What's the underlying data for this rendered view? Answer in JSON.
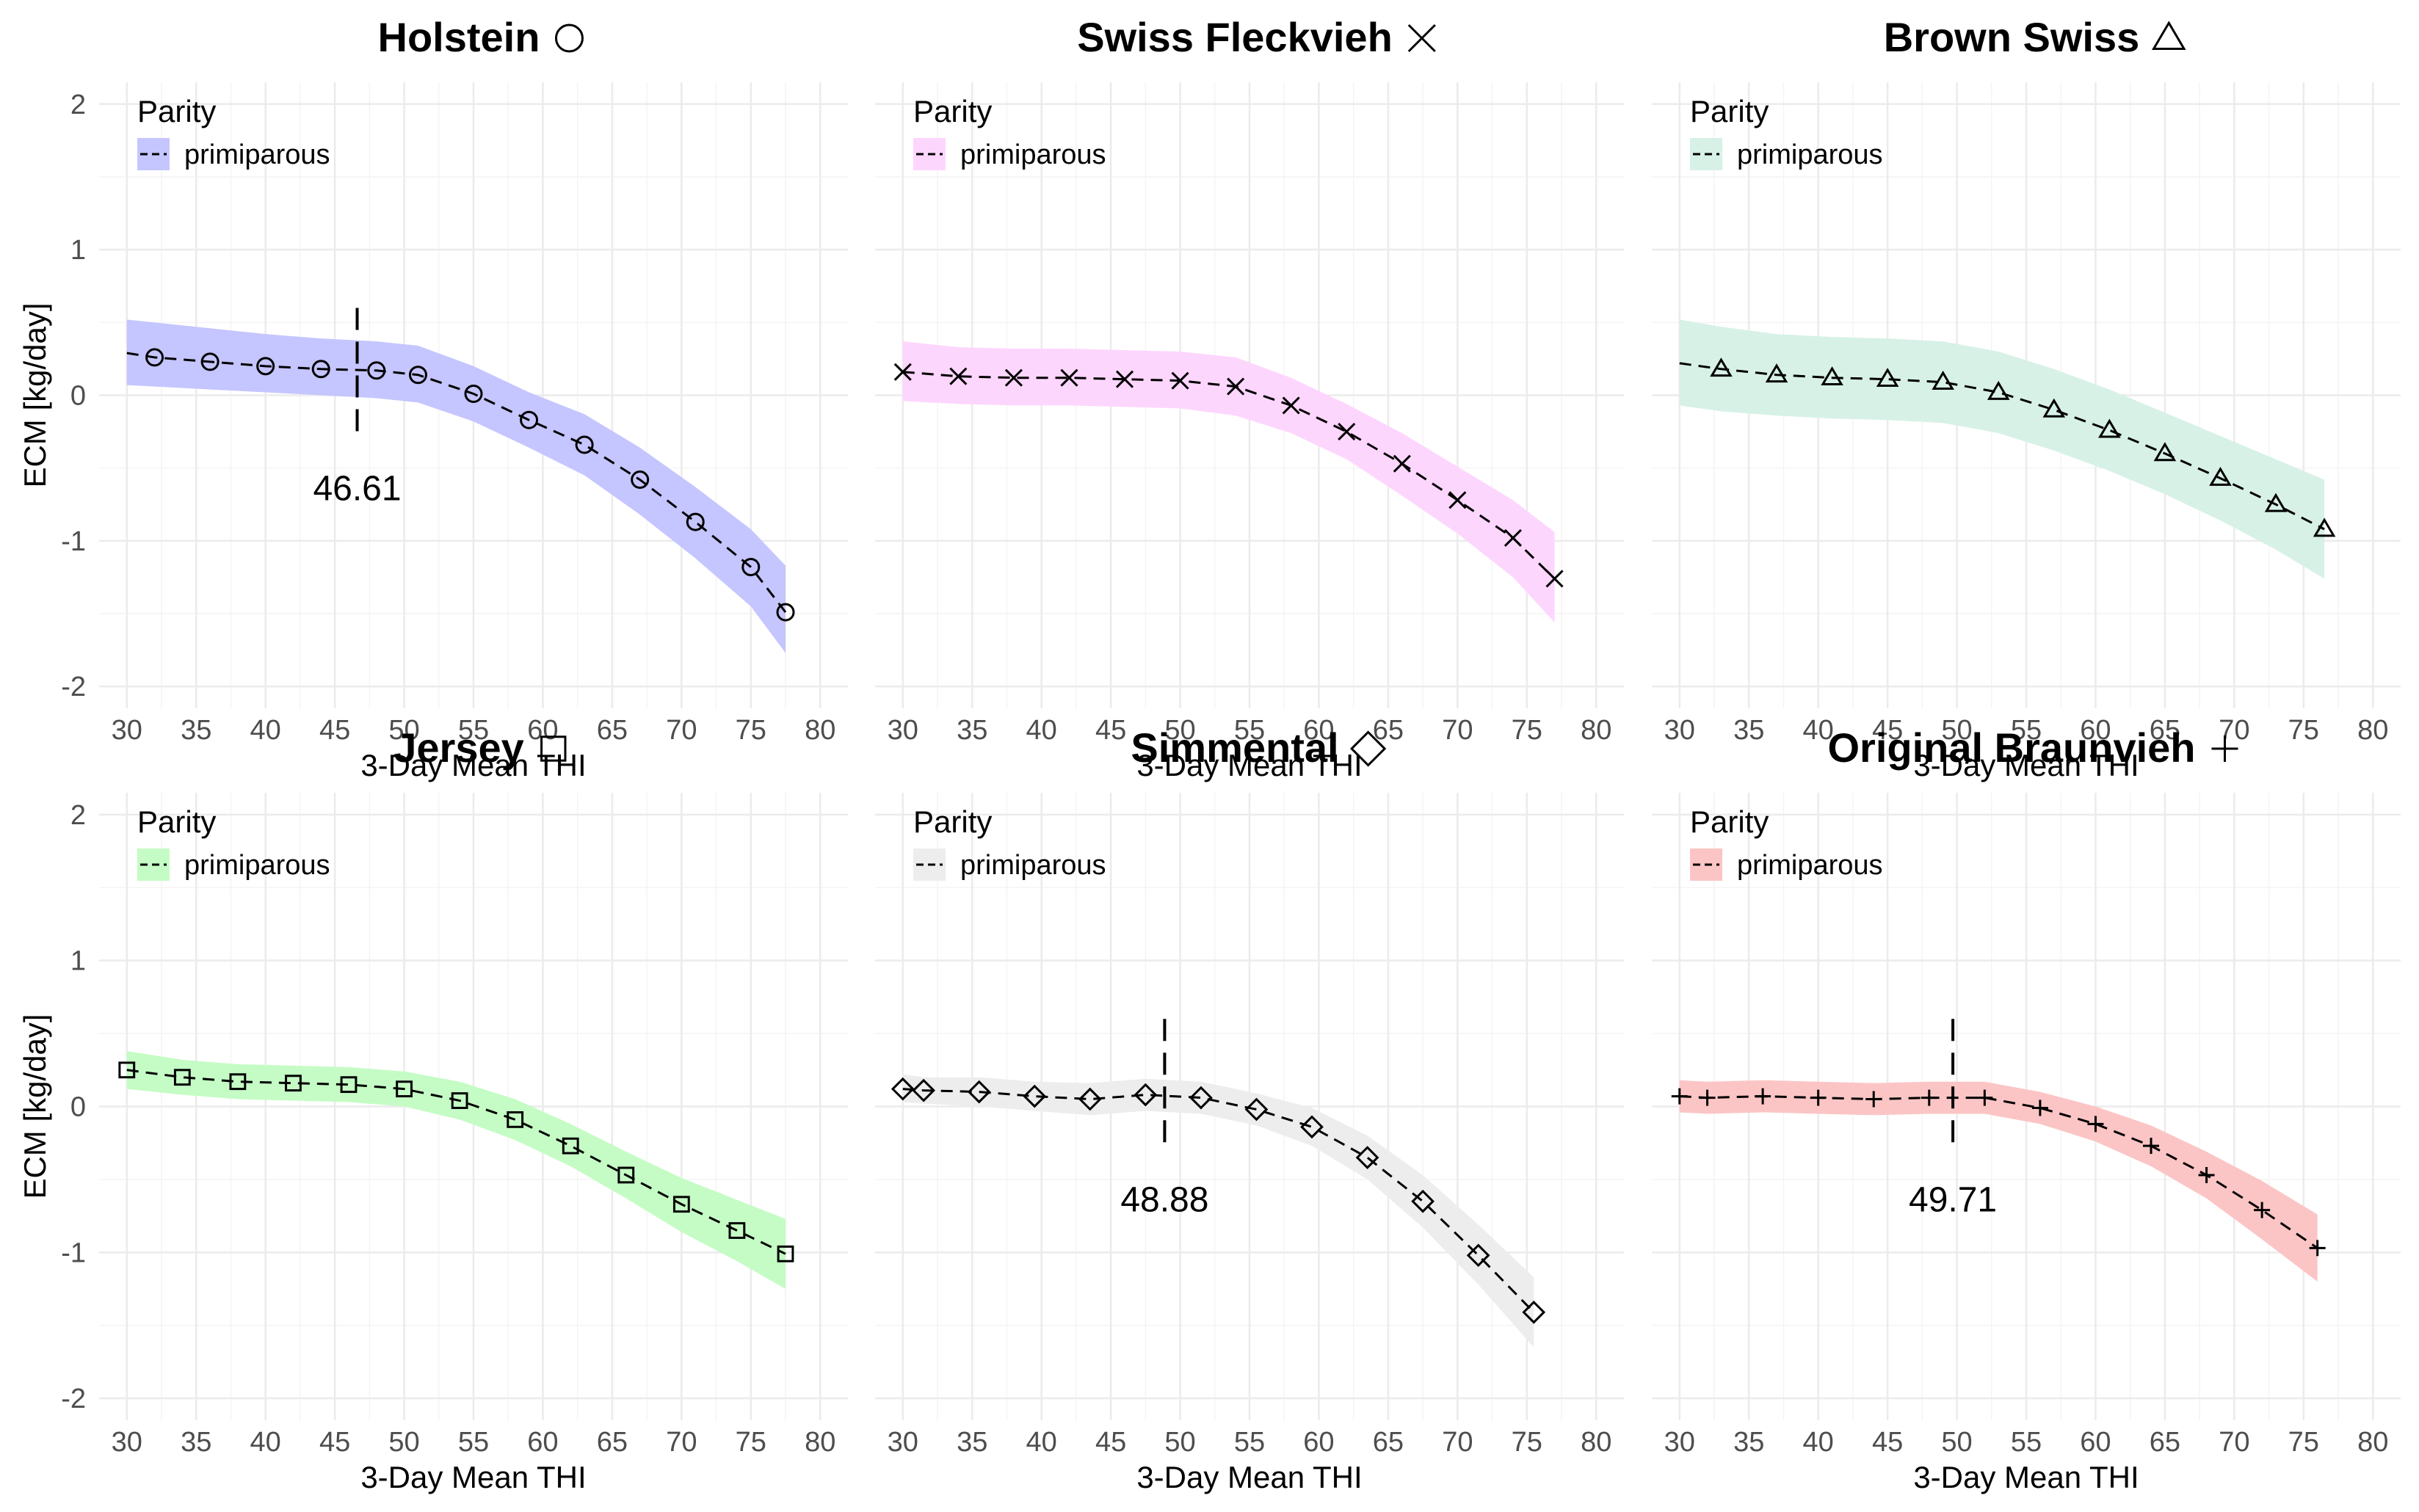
{
  "figure": {
    "x_axis_title": "3-Day Mean THI",
    "y_axis_title": "ECM [kg/day]",
    "legend_title": "Parity",
    "legend_label": "primiparous"
  },
  "chart_data": [
    {
      "type": "line",
      "title": "Holstein",
      "title_symbol": "circle",
      "xlabel": "3-Day Mean THI",
      "ylabel": "ECM [kg/day]",
      "xlim": [
        28,
        82
      ],
      "ylim": [
        -2.15,
        2.15
      ],
      "x_ticks": [
        30,
        35,
        40,
        45,
        50,
        55,
        60,
        65,
        70,
        75,
        80
      ],
      "y_ticks": [
        -2,
        -1,
        0,
        1,
        2
      ],
      "grid": true,
      "legend_position": "top-left",
      "ribbon_color": "#c5c5ff",
      "series": [
        {
          "name": "primiparous",
          "marker": "circle",
          "line_style": "dashed",
          "x": [
            30,
            32,
            36,
            40,
            44,
            48,
            51,
            55,
            59,
            63,
            67,
            71,
            75,
            77.5
          ],
          "y": [
            0.29,
            0.26,
            0.23,
            0.2,
            0.18,
            0.17,
            0.14,
            0.01,
            -0.17,
            -0.34,
            -0.58,
            -0.87,
            -1.18,
            -1.49
          ],
          "lower": [
            0.07,
            0.06,
            0.04,
            0.02,
            0.0,
            -0.02,
            -0.05,
            -0.18,
            -0.36,
            -0.55,
            -0.82,
            -1.12,
            -1.45,
            -1.77
          ],
          "upper": [
            0.52,
            0.5,
            0.46,
            0.42,
            0.39,
            0.37,
            0.34,
            0.2,
            0.02,
            -0.13,
            -0.36,
            -0.63,
            -0.92,
            -1.17
          ]
        }
      ],
      "annotations": [
        {
          "type": "vline",
          "x": 46.61,
          "label": "46.61"
        }
      ]
    },
    {
      "type": "line",
      "title": "Swiss Fleckvieh",
      "title_symbol": "cross",
      "xlabel": "3-Day Mean THI",
      "ylabel": "ECM [kg/day]",
      "xlim": [
        28,
        82
      ],
      "ylim": [
        -2.15,
        2.15
      ],
      "x_ticks": [
        30,
        35,
        40,
        45,
        50,
        55,
        60,
        65,
        70,
        75,
        80
      ],
      "y_ticks": [
        -2,
        -1,
        0,
        1,
        2
      ],
      "grid": true,
      "legend_position": "top-left",
      "ribbon_color": "#fdd6fd",
      "series": [
        {
          "name": "primiparous",
          "marker": "cross",
          "line_style": "dashed",
          "x": [
            30,
            34,
            38,
            42,
            46,
            50,
            54,
            58,
            62,
            66,
            70,
            74,
            77
          ],
          "y": [
            0.16,
            0.13,
            0.12,
            0.12,
            0.11,
            0.1,
            0.06,
            -0.07,
            -0.25,
            -0.47,
            -0.72,
            -0.98,
            -1.26
          ],
          "lower": [
            -0.04,
            -0.06,
            -0.07,
            -0.07,
            -0.08,
            -0.09,
            -0.14,
            -0.26,
            -0.44,
            -0.69,
            -0.95,
            -1.25,
            -1.56
          ],
          "upper": [
            0.37,
            0.33,
            0.32,
            0.32,
            0.31,
            0.3,
            0.26,
            0.12,
            -0.06,
            -0.26,
            -0.49,
            -0.72,
            -0.94
          ]
        }
      ]
    },
    {
      "type": "line",
      "title": "Brown Swiss",
      "title_symbol": "triangle",
      "xlabel": "3-Day Mean THI",
      "ylabel": "ECM [kg/day]",
      "xlim": [
        28,
        82
      ],
      "ylim": [
        -2.15,
        2.15
      ],
      "x_ticks": [
        30,
        35,
        40,
        45,
        50,
        55,
        60,
        65,
        70,
        75,
        80
      ],
      "y_ticks": [
        -2,
        -1,
        0,
        1,
        2
      ],
      "grid": true,
      "legend_position": "top-left",
      "ribbon_color": "#d7f1e7",
      "series": [
        {
          "name": "primiparous",
          "marker": "triangle",
          "line_style": "dashed",
          "x": [
            30,
            33,
            37,
            41,
            45,
            49,
            53,
            57,
            61,
            65,
            69,
            73,
            76.5
          ],
          "y": [
            0.22,
            0.18,
            0.14,
            0.12,
            0.11,
            0.09,
            0.02,
            -0.1,
            -0.24,
            -0.4,
            -0.57,
            -0.75,
            -0.92
          ],
          "lower": [
            -0.07,
            -0.11,
            -0.14,
            -0.16,
            -0.17,
            -0.19,
            -0.26,
            -0.38,
            -0.52,
            -0.68,
            -0.86,
            -1.06,
            -1.26
          ],
          "upper": [
            0.52,
            0.47,
            0.42,
            0.4,
            0.39,
            0.37,
            0.3,
            0.18,
            0.04,
            -0.12,
            -0.28,
            -0.44,
            -0.58
          ]
        }
      ]
    },
    {
      "type": "line",
      "title": "Jersey",
      "title_symbol": "square",
      "xlabel": "3-Day Mean THI",
      "ylabel": "ECM [kg/day]",
      "xlim": [
        28,
        82
      ],
      "ylim": [
        -2.15,
        2.15
      ],
      "x_ticks": [
        30,
        35,
        40,
        45,
        50,
        55,
        60,
        65,
        70,
        75,
        80
      ],
      "y_ticks": [
        -2,
        -1,
        0,
        1,
        2
      ],
      "grid": true,
      "legend_position": "top-left",
      "ribbon_color": "#c5fcc5",
      "series": [
        {
          "name": "primiparous",
          "marker": "square",
          "line_style": "dashed",
          "x": [
            30,
            34,
            38,
            42,
            46,
            50,
            54,
            58,
            62,
            66,
            70,
            74,
            77.5
          ],
          "y": [
            0.25,
            0.2,
            0.17,
            0.16,
            0.15,
            0.12,
            0.04,
            -0.09,
            -0.27,
            -0.47,
            -0.67,
            -0.85,
            -1.01
          ],
          "lower": [
            0.12,
            0.08,
            0.05,
            0.04,
            0.03,
            0.0,
            -0.09,
            -0.23,
            -0.41,
            -0.63,
            -0.86,
            -1.06,
            -1.25
          ],
          "upper": [
            0.38,
            0.32,
            0.29,
            0.28,
            0.27,
            0.24,
            0.17,
            0.05,
            -0.12,
            -0.31,
            -0.49,
            -0.64,
            -0.77
          ]
        }
      ]
    },
    {
      "type": "line",
      "title": "Simmental",
      "title_symbol": "diamond",
      "xlabel": "3-Day Mean THI",
      "ylabel": "ECM [kg/day]",
      "xlim": [
        28,
        82
      ],
      "ylim": [
        -2.15,
        2.15
      ],
      "x_ticks": [
        30,
        35,
        40,
        45,
        50,
        55,
        60,
        65,
        70,
        75,
        80
      ],
      "y_ticks": [
        -2,
        -1,
        0,
        1,
        2
      ],
      "grid": true,
      "legend_position": "top-left",
      "ribbon_color": "#ededed",
      "series": [
        {
          "name": "primiparous",
          "marker": "diamond",
          "line_style": "dashed",
          "x": [
            30,
            31.5,
            35.5,
            39.5,
            43.5,
            47.5,
            51.5,
            55.5,
            59.5,
            63.5,
            67.5,
            71.5,
            75.5
          ],
          "y": [
            0.12,
            0.11,
            0.1,
            0.07,
            0.05,
            0.08,
            0.06,
            -0.02,
            -0.14,
            -0.35,
            -0.65,
            -1.02,
            -1.41
          ],
          "lower": [
            0.03,
            0.02,
            0.0,
            -0.03,
            -0.06,
            -0.03,
            -0.05,
            -0.13,
            -0.27,
            -0.5,
            -0.83,
            -1.22,
            -1.65
          ],
          "upper": [
            0.22,
            0.2,
            0.2,
            0.17,
            0.16,
            0.19,
            0.17,
            0.09,
            -0.01,
            -0.2,
            -0.47,
            -0.81,
            -1.17
          ]
        }
      ],
      "annotations": [
        {
          "type": "vline",
          "x": 48.88,
          "label": "48.88"
        }
      ]
    },
    {
      "type": "line",
      "title": "Original Braunvieh",
      "title_symbol": "plus",
      "xlabel": "3-Day Mean THI",
      "ylabel": "ECM [kg/day]",
      "xlim": [
        28,
        82
      ],
      "ylim": [
        -2.15,
        2.15
      ],
      "x_ticks": [
        30,
        35,
        40,
        45,
        50,
        55,
        60,
        65,
        70,
        75,
        80
      ],
      "y_ticks": [
        -2,
        -1,
        0,
        1,
        2
      ],
      "grid": true,
      "legend_position": "top-left",
      "ribbon_color": "#fcc5c5",
      "series": [
        {
          "name": "primiparous",
          "marker": "plus",
          "line_style": "dashed",
          "x": [
            30,
            32,
            36,
            40,
            44,
            48,
            52,
            56,
            60,
            64,
            68,
            72,
            76
          ],
          "y": [
            0.07,
            0.06,
            0.07,
            0.06,
            0.05,
            0.06,
            0.06,
            -0.01,
            -0.12,
            -0.27,
            -0.47,
            -0.71,
            -0.97
          ],
          "lower": [
            -0.04,
            -0.05,
            -0.04,
            -0.05,
            -0.06,
            -0.05,
            -0.05,
            -0.12,
            -0.24,
            -0.41,
            -0.63,
            -0.91,
            -1.2
          ],
          "upper": [
            0.18,
            0.17,
            0.18,
            0.17,
            0.16,
            0.17,
            0.17,
            0.1,
            0.0,
            -0.13,
            -0.31,
            -0.51,
            -0.74
          ]
        }
      ],
      "annotations": [
        {
          "type": "vline",
          "x": 49.71,
          "label": "49.71"
        }
      ]
    }
  ]
}
